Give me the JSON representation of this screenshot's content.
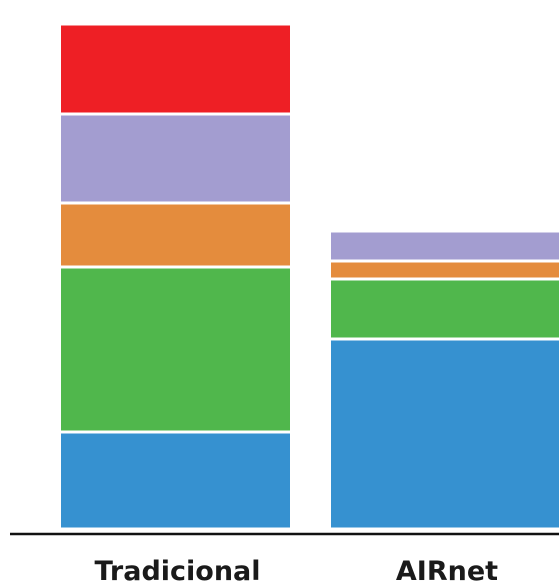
{
  "chart_data": {
    "type": "bar",
    "stacked": true,
    "categories": [
      "Tradicional",
      "AIRnet"
    ],
    "series": [
      {
        "color": "#3691d0",
        "values": [
          97,
          190
        ]
      },
      {
        "color": "#50b74c",
        "values": [
          165,
          60
        ]
      },
      {
        "color": "#e48c3d",
        "values": [
          64,
          18
        ]
      },
      {
        "color": "#e84030",
        "values": [
          0,
          0
        ]
      },
      {
        "color": "#a39dd0",
        "values": [
          89,
          30
        ]
      },
      {
        "color": "#ee1f25",
        "values": [
          90,
          0
        ]
      }
    ],
    "ylim": [
      0,
      515
    ],
    "title": "",
    "xlabel": "",
    "ylabel": "",
    "legend": false,
    "grid": false
  }
}
